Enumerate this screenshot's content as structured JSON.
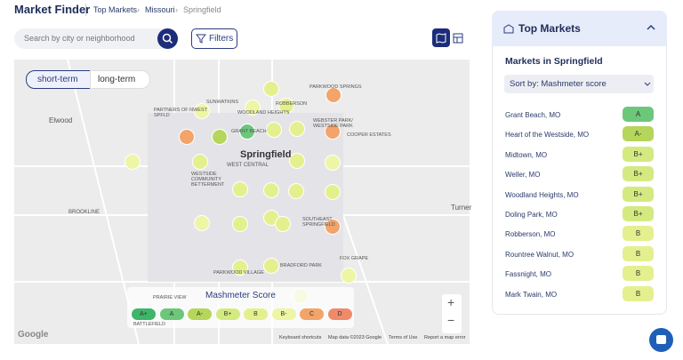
{
  "header": {
    "title": "Market Finder",
    "breadcrumb": [
      "Top Markets",
      "Missouri",
      "Springfield"
    ]
  },
  "toolbar": {
    "search_placeholder": "Search by city or neighborhood",
    "filters": "Filters"
  },
  "map": {
    "toggles": [
      "short-term",
      "long-term"
    ],
    "labels": [
      "Elwood",
      "Springfield",
      "West Central",
      "Westside Community Betterment",
      "Brookline",
      "Turner",
      "Fox Grape",
      "Cooper Estates",
      "Webster Park/ Westside Park",
      "Parkwood Springs",
      "Partners of Nwest Spfld",
      "Sunwatkins",
      "Woodland Heights",
      "Robberson",
      "Grant Beach",
      "Bradford Park",
      "Southeast Springfield",
      "Parkwood Village",
      "Prairie View",
      "Battlefield"
    ],
    "legend": {
      "title": "Mashmeter Score",
      "grades": [
        "A+",
        "A",
        "A-",
        "B+",
        "B",
        "B-",
        "C",
        "D"
      ]
    },
    "logo": "Google",
    "footer": [
      "Keyboard shortcuts",
      "Map data ©2023 Google",
      "Terms of Use",
      "Report a map error"
    ]
  },
  "sidebar": {
    "title": "Top Markets",
    "subtitle": "Markets in Springfield",
    "sort": "Sort by: Mashmeter score",
    "markets": [
      {
        "name": "Grant Beach, MO",
        "grade": "A"
      },
      {
        "name": "Heart of the Westside, MO",
        "grade": "A-"
      },
      {
        "name": "Midtown, MO",
        "grade": "B+"
      },
      {
        "name": "Weller, MO",
        "grade": "B+"
      },
      {
        "name": "Woodland Heights, MO",
        "grade": "B+"
      },
      {
        "name": "Doling Park, MO",
        "grade": "B+"
      },
      {
        "name": "Robberson, MO",
        "grade": "B"
      },
      {
        "name": "Rountree Walnut, MO",
        "grade": "B"
      },
      {
        "name": "Fassnight, MO",
        "grade": "B"
      },
      {
        "name": "Mark Twain, MO",
        "grade": "B"
      }
    ]
  }
}
